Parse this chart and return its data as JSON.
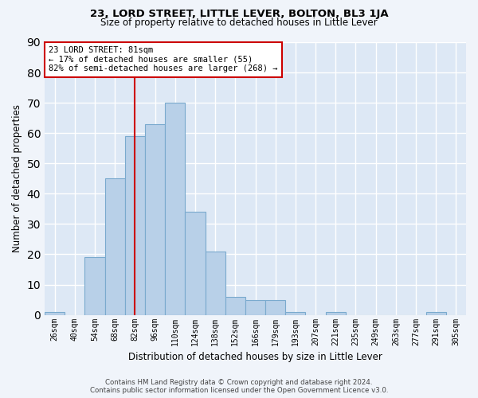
{
  "title": "23, LORD STREET, LITTLE LEVER, BOLTON, BL3 1JA",
  "subtitle": "Size of property relative to detached houses in Little Lever",
  "xlabel": "Distribution of detached houses by size in Little Lever",
  "ylabel": "Number of detached properties",
  "bar_color": "#b8d0e8",
  "bar_edge_color": "#7aaace",
  "background_color": "#dde8f5",
  "grid_color": "#ffffff",
  "bins": [
    "26sqm",
    "40sqm",
    "54sqm",
    "68sqm",
    "82sqm",
    "96sqm",
    "110sqm",
    "124sqm",
    "138sqm",
    "152sqm",
    "166sqm",
    "179sqm",
    "193sqm",
    "207sqm",
    "221sqm",
    "235sqm",
    "249sqm",
    "263sqm",
    "277sqm",
    "291sqm",
    "305sqm"
  ],
  "values": [
    1,
    0,
    19,
    45,
    59,
    63,
    70,
    34,
    21,
    6,
    5,
    5,
    1,
    0,
    1,
    0,
    0,
    0,
    0,
    1,
    0
  ],
  "ylim": [
    0,
    90
  ],
  "yticks": [
    0,
    10,
    20,
    30,
    40,
    50,
    60,
    70,
    80,
    90
  ],
  "annotation_line1": "23 LORD STREET: 81sqm",
  "annotation_line2": "← 17% of detached houses are smaller (55)",
  "annotation_line3": "82% of semi-detached houses are larger (268) →",
  "annotation_box_color": "#ffffff",
  "annotation_box_edge": "#cc0000",
  "vline_color": "#cc0000",
  "vline_pos": 4.0,
  "footer_line1": "Contains HM Land Registry data © Crown copyright and database right 2024.",
  "footer_line2": "Contains public sector information licensed under the Open Government Licence v3.0.",
  "fig_bg": "#f0f4fa"
}
